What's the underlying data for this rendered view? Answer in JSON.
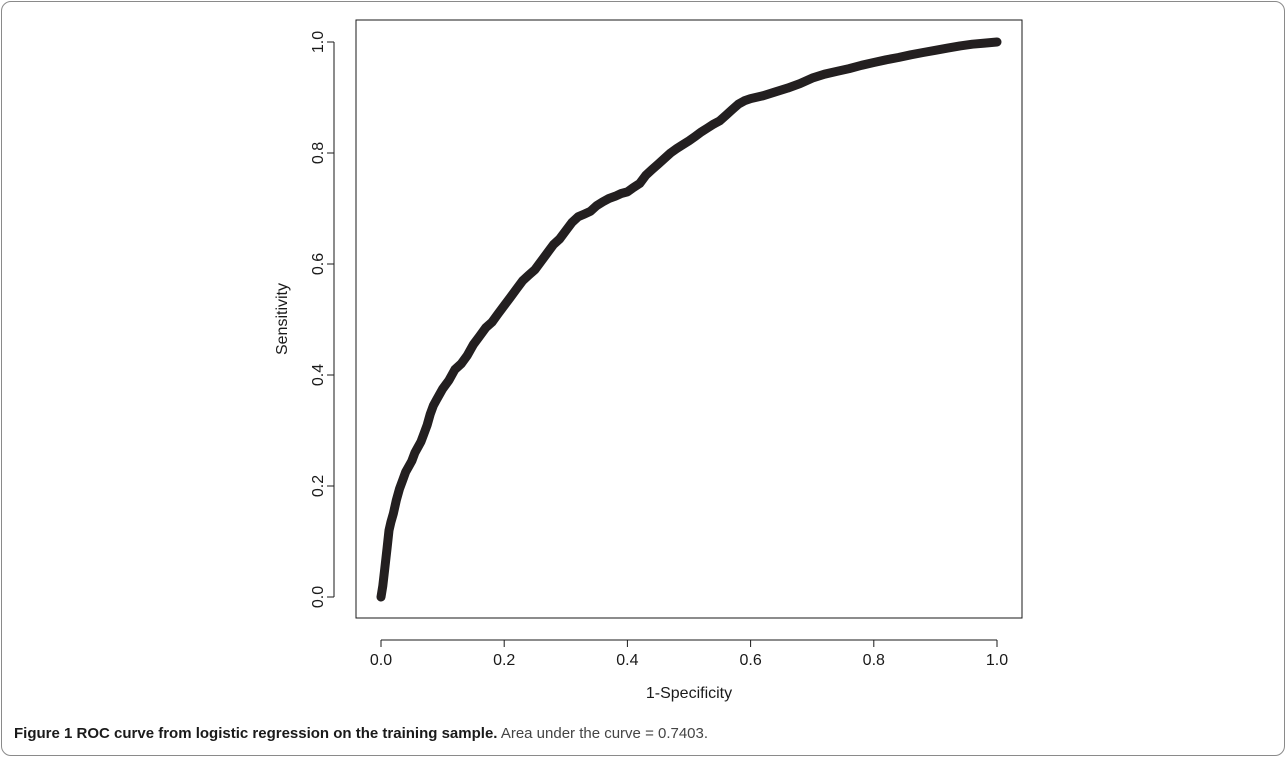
{
  "chart_data": {
    "type": "line",
    "title": "",
    "xlabel": "1-Specificity",
    "ylabel": "Sensitivity",
    "xlim": [
      0,
      1
    ],
    "ylim": [
      0,
      1
    ],
    "xticks": [
      "0.0",
      "0.2",
      "0.4",
      "0.6",
      "0.8",
      "1.0"
    ],
    "yticks": [
      "0.0",
      "0.2",
      "0.4",
      "0.6",
      "0.8",
      "1.0"
    ],
    "grid": false,
    "legend": "none",
    "line_color": "#231f20",
    "series": [
      {
        "x": [
          0.0,
          0.003,
          0.006,
          0.01,
          0.013,
          0.016,
          0.02,
          0.025,
          0.03,
          0.035,
          0.04,
          0.045,
          0.05,
          0.055,
          0.06,
          0.065,
          0.07,
          0.075,
          0.08,
          0.085,
          0.09,
          0.1,
          0.11,
          0.12,
          0.13,
          0.14,
          0.15,
          0.16,
          0.17,
          0.18,
          0.19,
          0.2,
          0.21,
          0.22,
          0.23,
          0.24,
          0.25,
          0.26,
          0.27,
          0.28,
          0.29,
          0.3,
          0.31,
          0.32,
          0.33,
          0.34,
          0.35,
          0.36,
          0.37,
          0.38,
          0.39,
          0.4,
          0.41,
          0.42,
          0.43,
          0.44,
          0.45,
          0.46,
          0.47,
          0.48,
          0.49,
          0.5,
          0.51,
          0.52,
          0.53,
          0.54,
          0.55,
          0.56,
          0.57,
          0.58,
          0.59,
          0.6,
          0.62,
          0.64,
          0.66,
          0.68,
          0.7,
          0.72,
          0.74,
          0.76,
          0.78,
          0.8,
          0.82,
          0.84,
          0.86,
          0.88,
          0.9,
          0.92,
          0.94,
          0.96,
          0.98,
          1.0
        ],
        "values": [
          0.0,
          0.02,
          0.05,
          0.09,
          0.12,
          0.135,
          0.15,
          0.175,
          0.195,
          0.21,
          0.225,
          0.235,
          0.245,
          0.26,
          0.27,
          0.28,
          0.295,
          0.31,
          0.33,
          0.345,
          0.355,
          0.375,
          0.39,
          0.41,
          0.42,
          0.435,
          0.455,
          0.47,
          0.485,
          0.495,
          0.51,
          0.525,
          0.54,
          0.555,
          0.57,
          0.58,
          0.59,
          0.605,
          0.62,
          0.635,
          0.645,
          0.66,
          0.675,
          0.685,
          0.69,
          0.695,
          0.705,
          0.712,
          0.718,
          0.722,
          0.727,
          0.73,
          0.738,
          0.745,
          0.76,
          0.77,
          0.78,
          0.79,
          0.8,
          0.808,
          0.815,
          0.822,
          0.83,
          0.838,
          0.845,
          0.852,
          0.858,
          0.868,
          0.878,
          0.888,
          0.894,
          0.898,
          0.903,
          0.91,
          0.917,
          0.925,
          0.935,
          0.942,
          0.947,
          0.952,
          0.958,
          0.963,
          0.968,
          0.972,
          0.977,
          0.981,
          0.985,
          0.989,
          0.993,
          0.996,
          0.998,
          1.0
        ]
      }
    ]
  },
  "caption": {
    "label": "Figure 1",
    "title": "ROC curve from logistic regression on the training sample.",
    "description": "Area under the curve = 0.7403."
  }
}
